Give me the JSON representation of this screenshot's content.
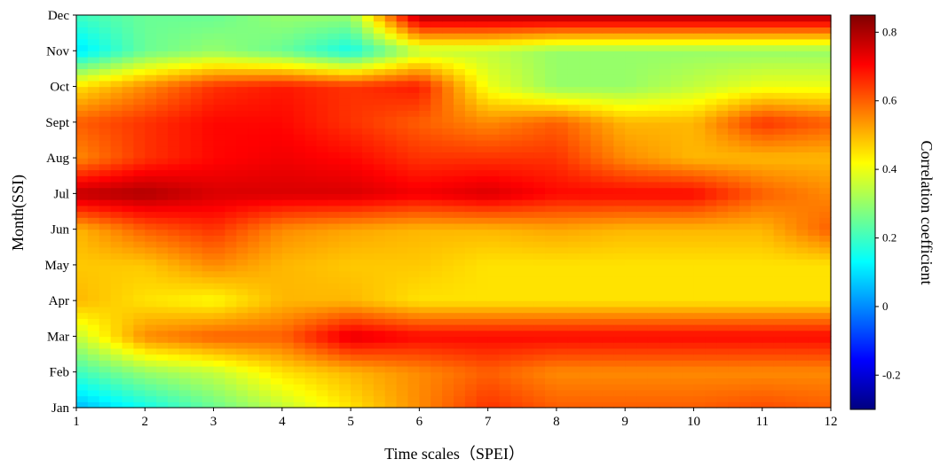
{
  "chart_data": {
    "type": "heatmap",
    "title": "",
    "xlabel": "Time scales（SPEI）",
    "ylabel": "Month(SSI)",
    "colorbar_label": "Correlation coefficient",
    "x": [
      1,
      2,
      3,
      4,
      5,
      6,
      7,
      8,
      9,
      10,
      11,
      12
    ],
    "y": [
      "Jan",
      "Feb",
      "Mar",
      "Apr",
      "May",
      "Jun",
      "Jul",
      "Aug",
      "Sept",
      "Oct",
      "Nov",
      "Dec"
    ],
    "xlim": [
      1,
      12
    ],
    "colorbar_range": [
      -0.3,
      0.85
    ],
    "colorbar_ticks": [
      -0.2,
      0,
      0.2,
      0.4,
      0.6,
      0.8
    ],
    "colormap": "jet",
    "values": [
      [
        0.05,
        0.15,
        0.25,
        0.35,
        0.45,
        0.55,
        0.65,
        0.6,
        0.6,
        0.6,
        0.62,
        0.6
      ],
      [
        0.2,
        0.3,
        0.35,
        0.45,
        0.5,
        0.55,
        0.6,
        0.55,
        0.55,
        0.55,
        0.55,
        0.55
      ],
      [
        0.35,
        0.55,
        0.6,
        0.6,
        0.74,
        0.7,
        0.7,
        0.7,
        0.7,
        0.7,
        0.7,
        0.7
      ],
      [
        0.5,
        0.45,
        0.42,
        0.5,
        0.5,
        0.45,
        0.45,
        0.45,
        0.45,
        0.45,
        0.45,
        0.45
      ],
      [
        0.48,
        0.48,
        0.55,
        0.5,
        0.48,
        0.48,
        0.45,
        0.45,
        0.45,
        0.45,
        0.45,
        0.45
      ],
      [
        0.5,
        0.6,
        0.65,
        0.55,
        0.52,
        0.5,
        0.5,
        0.52,
        0.5,
        0.5,
        0.5,
        0.6
      ],
      [
        0.78,
        0.8,
        0.75,
        0.75,
        0.75,
        0.72,
        0.75,
        0.7,
        0.7,
        0.7,
        0.6,
        0.55
      ],
      [
        0.55,
        0.65,
        0.7,
        0.72,
        0.7,
        0.65,
        0.65,
        0.65,
        0.55,
        0.5,
        0.5,
        0.5
      ],
      [
        0.6,
        0.65,
        0.7,
        0.7,
        0.65,
        0.6,
        0.55,
        0.6,
        0.5,
        0.5,
        0.65,
        0.6
      ],
      [
        0.45,
        0.55,
        0.65,
        0.68,
        0.65,
        0.68,
        0.4,
        0.3,
        0.3,
        0.35,
        0.4,
        0.4
      ],
      [
        0.1,
        0.25,
        0.3,
        0.25,
        0.15,
        0.35,
        0.35,
        0.3,
        0.3,
        0.3,
        0.3,
        0.3
      ],
      [
        0.2,
        0.25,
        0.25,
        0.3,
        0.3,
        0.8,
        0.8,
        0.8,
        0.8,
        0.8,
        0.8,
        0.8
      ]
    ]
  }
}
